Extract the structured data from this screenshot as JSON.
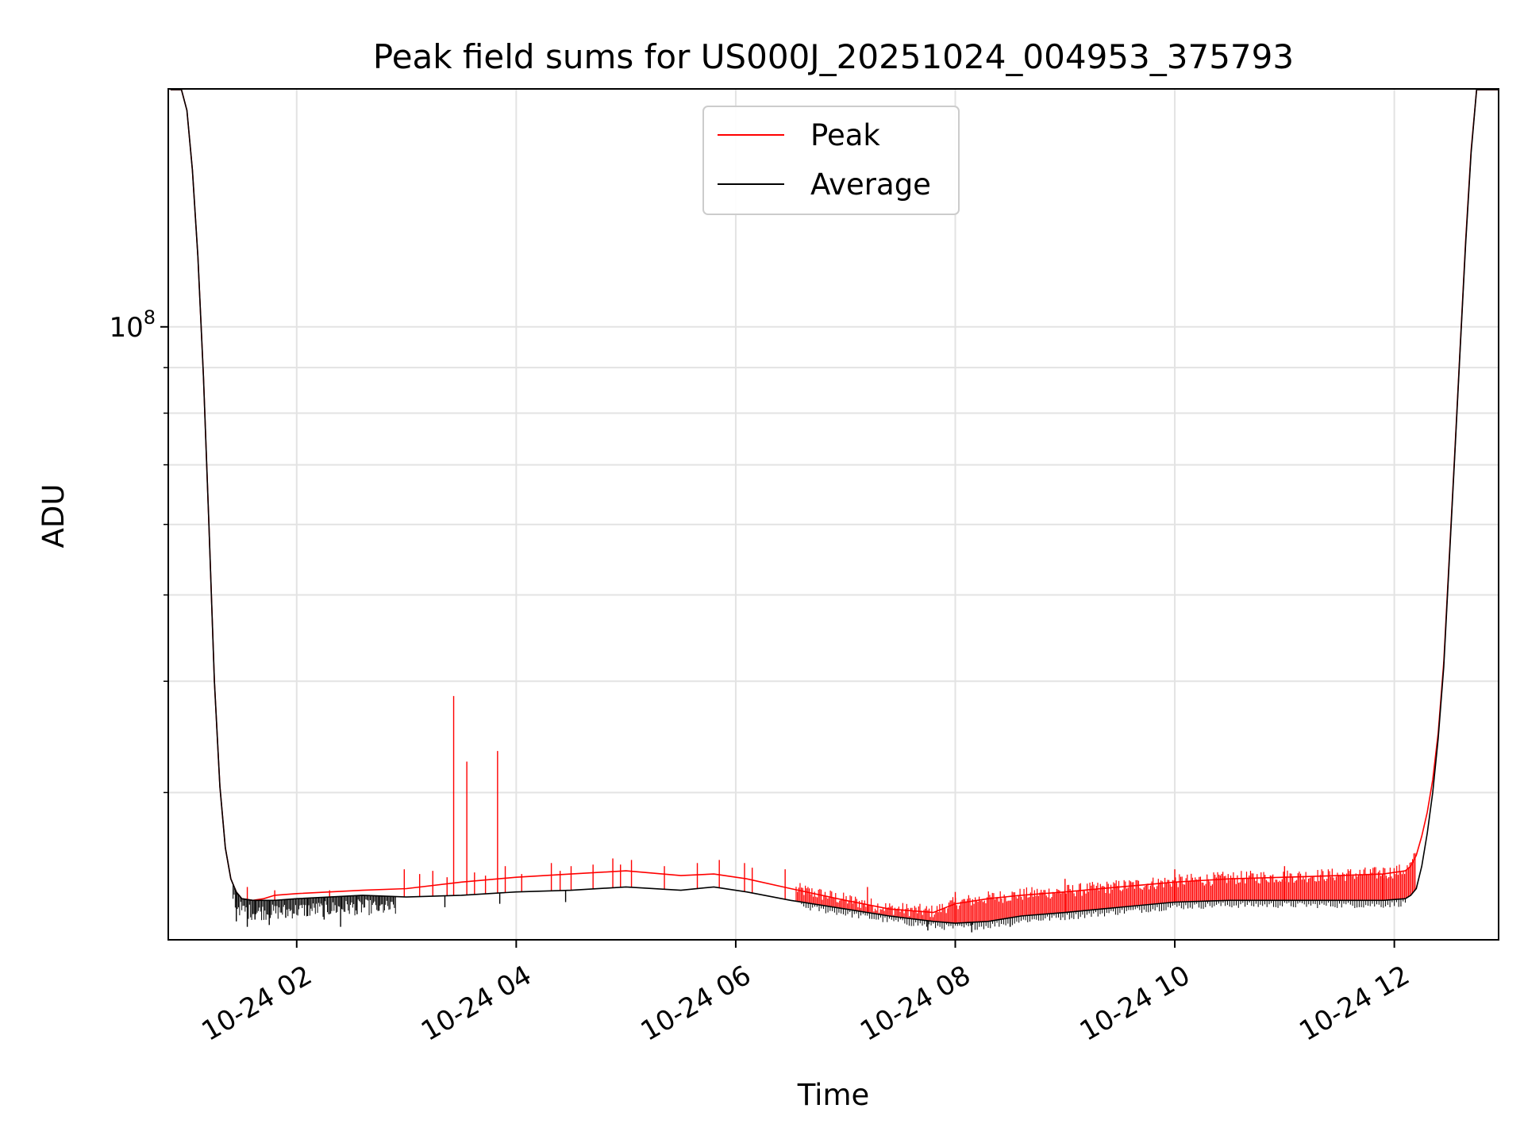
{
  "chart_data": {
    "type": "line",
    "title": "Peak field sums for US000J_20251024_004953_375793",
    "xlabel": "Time",
    "ylabel": "ADU",
    "x_unit": "hours since 2025-10-24 00:00",
    "xlim": [
      0.83,
      12.95
    ],
    "ylim": [
      20500000,
      185000000
    ],
    "yscale": "log",
    "grid": true,
    "legend_position": "upper center",
    "x_ticks": [
      {
        "value": 2,
        "label": "10-24 02"
      },
      {
        "value": 4,
        "label": "10-24 04"
      },
      {
        "value": 6,
        "label": "10-24 06"
      },
      {
        "value": 8,
        "label": "10-24 08"
      },
      {
        "value": 10,
        "label": "10-24 10"
      },
      {
        "value": 12,
        "label": "10-24 12"
      }
    ],
    "y_ticks": [
      {
        "value": 100000000,
        "base": "10",
        "exp": "8"
      }
    ],
    "y_minor_ticks": [
      30000000,
      40000000,
      50000000,
      60000000,
      70000000,
      80000000,
      90000000,
      200000000
    ],
    "series": [
      {
        "name": "Peak",
        "color": "#ff0000",
        "x": [
          0.85,
          0.95,
          1.0,
          1.05,
          1.1,
          1.15,
          1.2,
          1.25,
          1.3,
          1.35,
          1.4,
          1.45,
          1.5,
          1.6,
          1.7,
          1.8,
          2.0,
          2.3,
          2.6,
          3.0,
          3.5,
          4.0,
          4.5,
          5.0,
          5.5,
          5.8,
          6.1,
          6.5,
          7.0,
          7.4,
          7.8,
          8.0,
          8.3,
          8.6,
          9.0,
          9.5,
          10.0,
          10.5,
          11.0,
          11.5,
          11.9,
          12.1,
          12.15,
          12.2,
          12.25,
          12.3,
          12.35,
          12.4,
          12.45,
          12.5,
          12.55,
          12.6,
          12.65,
          12.7,
          12.75,
          12.8,
          12.85,
          12.95
        ],
        "values": [
          185000000,
          185000000,
          175000000,
          150000000,
          120000000,
          88000000,
          60000000,
          40000000,
          30500000,
          26000000,
          24000000,
          23200000,
          22800000,
          22700000,
          22800000,
          23000000,
          23100000,
          23200000,
          23300000,
          23400000,
          23800000,
          24100000,
          24300000,
          24500000,
          24200000,
          24300000,
          24000000,
          23400000,
          22700000,
          22200000,
          22000000,
          22500000,
          22800000,
          23000000,
          23200000,
          23500000,
          23800000,
          24000000,
          24100000,
          24200000,
          24300000,
          24500000,
          24800000,
          25500000,
          26800000,
          28500000,
          31000000,
          35000000,
          42000000,
          55000000,
          72000000,
          95000000,
          125000000,
          158000000,
          185000000,
          185000000,
          185000000,
          185000000
        ],
        "spikes": [
          {
            "x": 1.55,
            "value": 23500000
          },
          {
            "x": 1.8,
            "value": 23300000
          },
          {
            "x": 2.3,
            "value": 23300000
          },
          {
            "x": 2.98,
            "value": 24600000
          },
          {
            "x": 3.12,
            "value": 24300000
          },
          {
            "x": 3.24,
            "value": 24500000
          },
          {
            "x": 3.37,
            "value": 24100000
          },
          {
            "x": 3.43,
            "value": 38500000
          },
          {
            "x": 3.55,
            "value": 32500000
          },
          {
            "x": 3.62,
            "value": 24400000
          },
          {
            "x": 3.72,
            "value": 24200000
          },
          {
            "x": 3.83,
            "value": 33400000
          },
          {
            "x": 3.9,
            "value": 24800000
          },
          {
            "x": 4.05,
            "value": 24300000
          },
          {
            "x": 4.32,
            "value": 25000000
          },
          {
            "x": 4.4,
            "value": 24500000
          },
          {
            "x": 4.5,
            "value": 24800000
          },
          {
            "x": 4.7,
            "value": 24900000
          },
          {
            "x": 4.88,
            "value": 25300000
          },
          {
            "x": 4.95,
            "value": 24900000
          },
          {
            "x": 5.05,
            "value": 25200000
          },
          {
            "x": 5.35,
            "value": 24800000
          },
          {
            "x": 5.65,
            "value": 25000000
          },
          {
            "x": 5.85,
            "value": 25200000
          },
          {
            "x": 6.08,
            "value": 25000000
          },
          {
            "x": 6.15,
            "value": 24700000
          },
          {
            "x": 6.45,
            "value": 24600000
          },
          {
            "x": 7.2,
            "value": 23500000
          },
          {
            "x": 8.0,
            "value": 23200000
          },
          {
            "x": 9.0,
            "value": 24000000
          },
          {
            "x": 10.0,
            "value": 24600000
          },
          {
            "x": 11.0,
            "value": 24800000
          },
          {
            "x": 11.9,
            "value": 24700000
          }
        ],
        "dense_noise_ranges": [
          {
            "x_start": 6.55,
            "x_end": 12.2,
            "note": "dense vertical peak excursions above average"
          }
        ]
      },
      {
        "name": "Average",
        "color": "#000000",
        "x": [
          0.85,
          0.95,
          1.0,
          1.05,
          1.1,
          1.15,
          1.2,
          1.25,
          1.3,
          1.35,
          1.4,
          1.45,
          1.5,
          1.6,
          1.7,
          1.8,
          2.0,
          2.3,
          2.6,
          3.0,
          3.5,
          4.0,
          4.5,
          5.0,
          5.5,
          5.8,
          6.1,
          6.5,
          7.0,
          7.4,
          7.8,
          8.0,
          8.3,
          8.6,
          9.0,
          9.5,
          10.0,
          10.5,
          11.0,
          11.5,
          11.9,
          12.1,
          12.15,
          12.2,
          12.25,
          12.3,
          12.35,
          12.4,
          12.45,
          12.5,
          12.55,
          12.6,
          12.65,
          12.7,
          12.75,
          12.8,
          12.85,
          12.95
        ],
        "values": [
          185000000,
          185000000,
          175000000,
          150000000,
          120000000,
          88000000,
          60000000,
          40000000,
          30500000,
          26000000,
          24000000,
          23200000,
          22800000,
          22700000,
          22700000,
          22700000,
          22800000,
          22900000,
          23000000,
          22900000,
          23000000,
          23200000,
          23300000,
          23500000,
          23300000,
          23500000,
          23200000,
          22700000,
          22200000,
          21800000,
          21500000,
          21400000,
          21500000,
          21800000,
          22000000,
          22300000,
          22600000,
          22700000,
          22700000,
          22700000,
          22700000,
          22800000,
          23000000,
          23400000,
          24800000,
          27000000,
          30000000,
          34500000,
          41500000,
          54500000,
          71500000,
          94500000,
          124000000,
          157000000,
          185000000,
          185000000,
          185000000,
          185000000
        ],
        "dips": [
          {
            "x": 1.45,
            "value": 21500000
          },
          {
            "x": 1.55,
            "value": 21200000
          },
          {
            "x": 1.62,
            "value": 21600000
          },
          {
            "x": 1.75,
            "value": 21300000
          },
          {
            "x": 1.9,
            "value": 21700000
          },
          {
            "x": 2.1,
            "value": 21800000
          },
          {
            "x": 2.25,
            "value": 21600000
          },
          {
            "x": 2.4,
            "value": 21200000
          },
          {
            "x": 2.55,
            "value": 21900000
          },
          {
            "x": 2.75,
            "value": 22100000
          },
          {
            "x": 3.35,
            "value": 22300000
          },
          {
            "x": 3.85,
            "value": 22500000
          },
          {
            "x": 4.45,
            "value": 22600000
          },
          {
            "x": 7.75,
            "value": 21000000
          },
          {
            "x": 8.15,
            "value": 20900000
          },
          {
            "x": 8.5,
            "value": 21200000
          }
        ]
      }
    ],
    "legend": [
      {
        "label": "Peak",
        "color": "#ff0000"
      },
      {
        "label": "Average",
        "color": "#000000"
      }
    ]
  }
}
